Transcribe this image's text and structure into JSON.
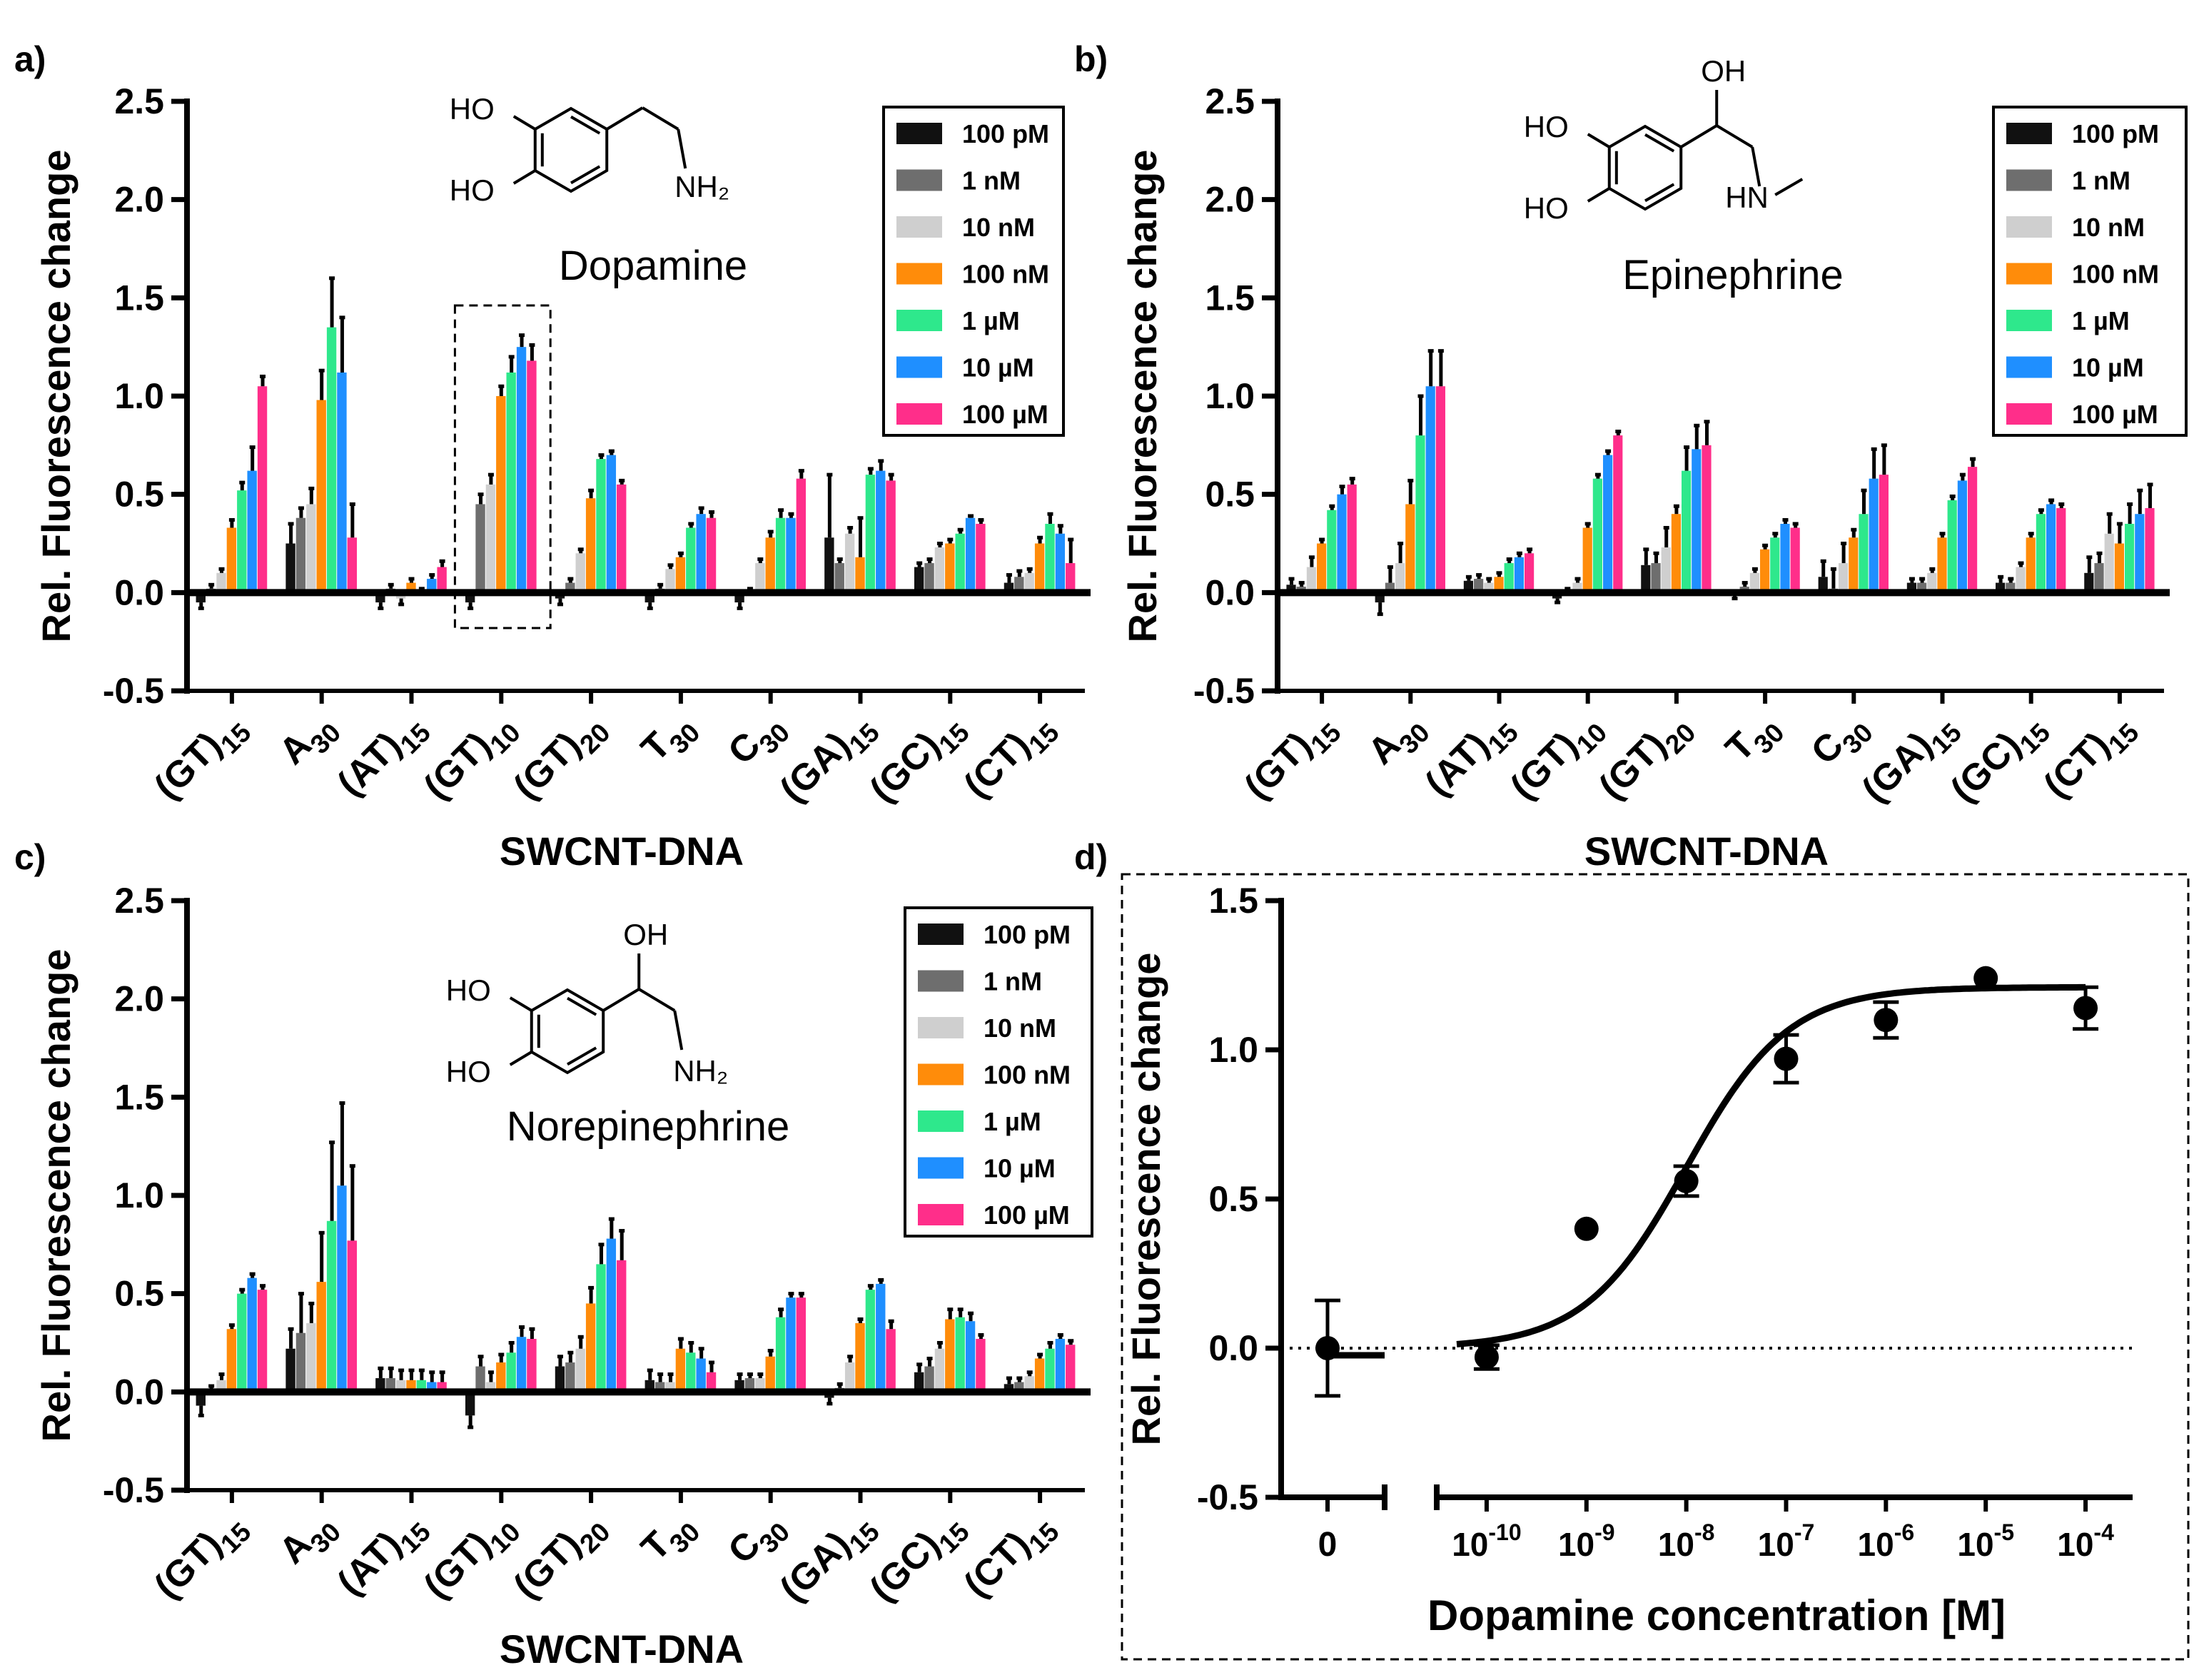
{
  "figure": {
    "legend_entries": [
      "100 pM",
      "1 nM",
      "10 nM",
      "100 nM",
      "1 µM",
      "10 µM",
      "100 µM"
    ],
    "series_colors": [
      "#111111",
      "#6e6e6e",
      "#cfcfcf",
      "#ff8c0a",
      "#2ee88c",
      "#1f8fff",
      "#ff2e8a"
    ]
  },
  "chart_data": [
    {
      "panel": "a)",
      "type": "bar",
      "title": "Dopamine",
      "molecule": [
        "HO",
        "HO",
        "NH₂"
      ],
      "xlabel": "SWCNT-DNA",
      "ylabel": "Rel. Fluorescence change",
      "ylim": [
        -0.5,
        2.5
      ],
      "yticks": [
        "2.5",
        "2.0",
        "1.5",
        "1.0",
        "0.5",
        "0.0",
        "-0.5"
      ],
      "categories": [
        "(GT)15",
        "A30",
        "(AT)15",
        "(GT)10",
        "(GT)20",
        "T30",
        "C30",
        "(GA)15",
        "(GC)15",
        "(CT)15"
      ],
      "series": [
        {
          "name": "100 pM",
          "values": [
            -0.05,
            0.25,
            -0.05,
            -0.05,
            -0.03,
            -0.05,
            -0.05,
            0.28,
            0.13,
            0.05
          ],
          "errors": [
            0.03,
            0.1,
            0.03,
            0.03,
            0.03,
            0.03,
            0.03,
            0.32,
            0.02,
            0.04
          ]
        },
        {
          "name": "1 nM",
          "values": [
            0.02,
            0.38,
            0.02,
            0.45,
            0.05,
            0.02,
            0.0,
            0.15,
            0.15,
            0.08
          ],
          "errors": [
            0.02,
            0.05,
            0.02,
            0.05,
            0.02,
            0.02,
            0.02,
            0.02,
            0.02,
            0.03
          ]
        },
        {
          "name": "10 nM",
          "values": [
            0.1,
            0.45,
            -0.03,
            0.55,
            0.2,
            0.12,
            0.15,
            0.3,
            0.23,
            0.1
          ],
          "errors": [
            0.02,
            0.08,
            0.03,
            0.05,
            0.02,
            0.02,
            0.02,
            0.03,
            0.02,
            0.02
          ]
        },
        {
          "name": "100 nM",
          "values": [
            0.33,
            0.98,
            0.05,
            1.0,
            0.48,
            0.18,
            0.28,
            0.18,
            0.25,
            0.25
          ],
          "errors": [
            0.04,
            0.15,
            0.02,
            0.05,
            0.04,
            0.02,
            0.03,
            0.2,
            0.02,
            0.03
          ]
        },
        {
          "name": "1 µM",
          "values": [
            0.52,
            1.35,
            0.0,
            1.12,
            0.68,
            0.33,
            0.38,
            0.6,
            0.3,
            0.35
          ],
          "errors": [
            0.04,
            0.25,
            0.02,
            0.08,
            0.02,
            0.02,
            0.04,
            0.03,
            0.02,
            0.05
          ]
        },
        {
          "name": "10 µM",
          "values": [
            0.62,
            1.12,
            0.07,
            1.25,
            0.7,
            0.4,
            0.38,
            0.62,
            0.38,
            0.3
          ],
          "errors": [
            0.12,
            0.28,
            0.02,
            0.06,
            0.02,
            0.03,
            0.02,
            0.05,
            0.01,
            0.04
          ]
        },
        {
          "name": "100 µM",
          "values": [
            1.05,
            0.28,
            0.13,
            1.18,
            0.55,
            0.38,
            0.58,
            0.57,
            0.35,
            0.15
          ],
          "errors": [
            0.05,
            0.17,
            0.03,
            0.08,
            0.02,
            0.03,
            0.04,
            0.03,
            0.02,
            0.12
          ]
        }
      ]
    },
    {
      "panel": "b)",
      "type": "bar",
      "title": "Epinephrine",
      "molecule": [
        "OH",
        "HO",
        "HO",
        "HN"
      ],
      "xlabel": "SWCNT-DNA",
      "ylabel": "Rel. Fluorescence change",
      "ylim": [
        -0.5,
        2.5
      ],
      "yticks": [
        "2.5",
        "2.0",
        "1.5",
        "1.0",
        "0.5",
        "0.0",
        "-0.5"
      ],
      "categories": [
        "(GT)15",
        "A30",
        "(AT)15",
        "(GT)10",
        "(GT)20",
        "T30",
        "C30",
        "(GA)15",
        "(GC)15",
        "(CT)15"
      ],
      "series": [
        {
          "name": "100 pM",
          "values": [
            0.04,
            -0.05,
            0.06,
            -0.03,
            0.14,
            -0.01,
            0.08,
            0.05,
            0.05,
            0.1
          ],
          "errors": [
            0.03,
            0.06,
            0.02,
            0.02,
            0.08,
            0.02,
            0.08,
            0.02,
            0.03,
            0.08
          ]
        },
        {
          "name": "1 nM",
          "values": [
            0.03,
            0.05,
            0.07,
            0.0,
            0.15,
            0.03,
            0.02,
            0.05,
            0.05,
            0.15
          ],
          "errors": [
            0.02,
            0.08,
            0.02,
            0.02,
            0.05,
            0.02,
            0.1,
            0.02,
            0.02,
            0.05
          ]
        },
        {
          "name": "10 nM",
          "values": [
            0.13,
            0.15,
            0.05,
            0.05,
            0.23,
            0.1,
            0.15,
            0.1,
            0.13,
            0.3
          ],
          "errors": [
            0.05,
            0.1,
            0.02,
            0.02,
            0.1,
            0.02,
            0.1,
            0.02,
            0.02,
            0.1
          ]
        },
        {
          "name": "100 nM",
          "values": [
            0.25,
            0.45,
            0.08,
            0.33,
            0.4,
            0.22,
            0.28,
            0.28,
            0.28,
            0.25
          ],
          "errors": [
            0.02,
            0.12,
            0.02,
            0.02,
            0.04,
            0.02,
            0.04,
            0.02,
            0.02,
            0.1
          ]
        },
        {
          "name": "1 µM",
          "values": [
            0.42,
            0.8,
            0.15,
            0.58,
            0.62,
            0.28,
            0.4,
            0.47,
            0.4,
            0.35
          ],
          "errors": [
            0.02,
            0.2,
            0.02,
            0.02,
            0.12,
            0.02,
            0.12,
            0.02,
            0.02,
            0.1
          ]
        },
        {
          "name": "10 µM",
          "values": [
            0.5,
            1.05,
            0.18,
            0.7,
            0.73,
            0.35,
            0.58,
            0.57,
            0.45,
            0.4
          ],
          "errors": [
            0.04,
            0.18,
            0.02,
            0.02,
            0.12,
            0.02,
            0.15,
            0.03,
            0.02,
            0.12
          ]
        },
        {
          "name": "100 µM",
          "values": [
            0.55,
            1.05,
            0.2,
            0.8,
            0.75,
            0.33,
            0.6,
            0.64,
            0.43,
            0.43
          ],
          "errors": [
            0.03,
            0.18,
            0.02,
            0.02,
            0.12,
            0.02,
            0.15,
            0.04,
            0.02,
            0.12
          ]
        }
      ]
    },
    {
      "panel": "c)",
      "type": "bar",
      "title": "Norepinephrine",
      "molecule": [
        "OH",
        "HO",
        "HO",
        "NH₂"
      ],
      "xlabel": "SWCNT-DNA",
      "ylabel": "Rel. Fluorescence change",
      "ylim": [
        -0.5,
        2.5
      ],
      "yticks": [
        "2.5",
        "2.0",
        "1.5",
        "1.0",
        "0.5",
        "0.0",
        "-0.5"
      ],
      "categories": [
        "(GT)15",
        "A30",
        "(AT)15",
        "(GT)10",
        "(GT)20",
        "T30",
        "C30",
        "(GA)15",
        "(GC)15",
        "(CT)15"
      ],
      "series": [
        {
          "name": "100 pM",
          "values": [
            -0.07,
            0.22,
            0.07,
            -0.12,
            0.13,
            0.06,
            0.06,
            -0.03,
            0.1,
            0.04
          ],
          "errors": [
            0.05,
            0.1,
            0.05,
            0.06,
            0.05,
            0.05,
            0.03,
            0.03,
            0.04,
            0.03
          ]
        },
        {
          "name": "1 nM",
          "values": [
            0.01,
            0.3,
            0.07,
            0.13,
            0.15,
            0.05,
            0.07,
            0.02,
            0.13,
            0.05
          ],
          "errors": [
            0.02,
            0.2,
            0.05,
            0.05,
            0.05,
            0.04,
            0.02,
            0.02,
            0.04,
            0.02
          ]
        },
        {
          "name": "10 nM",
          "values": [
            0.06,
            0.35,
            0.06,
            0.05,
            0.22,
            0.05,
            0.07,
            0.15,
            0.22,
            0.08
          ],
          "errors": [
            0.03,
            0.1,
            0.05,
            0.05,
            0.06,
            0.04,
            0.02,
            0.03,
            0.03,
            0.02
          ]
        },
        {
          "name": "100 nM",
          "values": [
            0.32,
            0.56,
            0.06,
            0.15,
            0.45,
            0.22,
            0.18,
            0.35,
            0.37,
            0.17
          ],
          "errors": [
            0.02,
            0.25,
            0.05,
            0.04,
            0.08,
            0.05,
            0.03,
            0.02,
            0.05,
            0.02
          ]
        },
        {
          "name": "1 µM",
          "values": [
            0.5,
            0.87,
            0.06,
            0.2,
            0.65,
            0.2,
            0.38,
            0.52,
            0.38,
            0.22
          ],
          "errors": [
            0.02,
            0.4,
            0.05,
            0.05,
            0.1,
            0.05,
            0.04,
            0.02,
            0.04,
            0.03
          ]
        },
        {
          "name": "10 µM",
          "values": [
            0.58,
            1.05,
            0.05,
            0.28,
            0.78,
            0.17,
            0.48,
            0.55,
            0.36,
            0.27
          ],
          "errors": [
            0.02,
            0.42,
            0.05,
            0.05,
            0.1,
            0.05,
            0.02,
            0.02,
            0.04,
            0.02
          ]
        },
        {
          "name": "100 µM",
          "values": [
            0.52,
            0.77,
            0.05,
            0.27,
            0.67,
            0.1,
            0.48,
            0.32,
            0.27,
            0.24
          ],
          "errors": [
            0.02,
            0.38,
            0.05,
            0.05,
            0.15,
            0.05,
            0.02,
            0.04,
            0.02,
            0.02
          ]
        }
      ]
    },
    {
      "panel": "d)",
      "type": "scatter",
      "xlabel": "Dopamine concentration [M]",
      "ylabel": "Rel. Fluorescence change",
      "ylim": [
        -0.5,
        1.5
      ],
      "yticks": [
        "1.5",
        "1.0",
        "0.5",
        "0.0",
        "-0.5"
      ],
      "xscale": "log",
      "xlim": [
        -10.5,
        -3.6
      ],
      "xticks": [
        {
          "base": "10",
          "exp": "-10"
        },
        {
          "base": "10",
          "exp": "-9"
        },
        {
          "base": "10",
          "exp": "-8"
        },
        {
          "base": "10",
          "exp": "-7"
        },
        {
          "base": "10",
          "exp": "-6"
        },
        {
          "base": "10",
          "exp": "-5"
        },
        {
          "base": "10",
          "exp": "-4"
        }
      ],
      "zero_tick": "0",
      "zero_point": {
        "x": 0,
        "y": 0.0,
        "err": 0.16
      },
      "points": [
        {
          "x": -10,
          "y": -0.03,
          "err": 0.04
        },
        {
          "x": -9,
          "y": 0.4,
          "err": 0.0
        },
        {
          "x": -8,
          "y": 0.56,
          "err": 0.05
        },
        {
          "x": -7,
          "y": 0.97,
          "err": 0.08
        },
        {
          "x": -6,
          "y": 1.1,
          "err": 0.06
        },
        {
          "x": -5,
          "y": 1.24,
          "err": 0.0
        },
        {
          "x": -4,
          "y": 1.14,
          "err": 0.07
        }
      ],
      "fit": {
        "model": "sigmoid",
        "bottom": 0.0,
        "top": 1.21,
        "logEC50": -8.0,
        "hill": 0.85
      },
      "baseline": 0.0
    }
  ]
}
